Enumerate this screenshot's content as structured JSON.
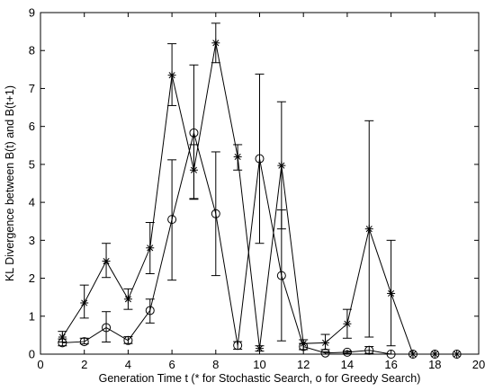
{
  "chart_data": {
    "type": "line",
    "title": "",
    "xlabel": "Generation Time t (* for Stochastic Search, o for Greedy Search)",
    "ylabel": "KL Divergence between B(t) and B(t+1)",
    "xlim": [
      0,
      20
    ],
    "ylim": [
      0,
      9
    ],
    "xticks": [
      "0",
      "2",
      "4",
      "6",
      "8",
      "10",
      "12",
      "14",
      "16",
      "18",
      "20"
    ],
    "yticks": [
      "0",
      "1",
      "2",
      "3",
      "4",
      "5",
      "6",
      "7",
      "8",
      "9"
    ],
    "grid": false,
    "legend": "none",
    "series": [
      {
        "marker": "asterisk",
        "color": "#000000",
        "x": [
          1,
          2,
          3,
          4,
          5,
          6,
          7,
          8,
          9,
          10,
          11,
          12,
          13,
          14,
          15,
          16,
          17,
          18,
          19
        ],
        "y": [
          0.45,
          1.35,
          2.45,
          1.45,
          2.8,
          7.35,
          4.85,
          8.2,
          5.2,
          0.15,
          4.97,
          0.28,
          0.3,
          0.8,
          3.3,
          1.6,
          0.0,
          0.0,
          0.0
        ],
        "err_low": [
          0.32,
          0.95,
          2.02,
          1.18,
          2.12,
          6.55,
          4.08,
          7.68,
          4.85,
          0.08,
          3.3,
          0.12,
          0.12,
          0.42,
          0.45,
          0.22,
          0.0,
          0.0,
          0.0
        ],
        "err_high": [
          0.6,
          1.82,
          2.92,
          1.72,
          3.47,
          8.18,
          5.52,
          8.72,
          5.52,
          0.22,
          6.65,
          0.38,
          0.52,
          1.18,
          6.15,
          3.0,
          0.0,
          0.0,
          0.0
        ]
      },
      {
        "marker": "circle",
        "color": "#000000",
        "x": [
          1,
          2,
          3,
          4,
          5,
          6,
          7,
          8,
          9,
          10,
          11,
          12,
          13,
          14,
          15,
          16,
          17,
          18,
          19
        ],
        "y": [
          0.3,
          0.33,
          0.7,
          0.36,
          1.15,
          3.55,
          5.83,
          3.7,
          0.23,
          5.15,
          2.07,
          0.2,
          0.03,
          0.05,
          0.1,
          0.0,
          0.0,
          0.0,
          0.0
        ],
        "err_low": [
          0.22,
          0.27,
          0.32,
          0.28,
          0.82,
          1.95,
          4.1,
          2.07,
          0.13,
          2.92,
          0.35,
          0.12,
          0.0,
          0.02,
          0.02,
          0.0,
          0.0,
          0.0,
          0.0
        ],
        "err_high": [
          0.4,
          0.42,
          1.12,
          0.46,
          1.45,
          5.12,
          7.62,
          5.33,
          0.33,
          7.38,
          3.8,
          0.28,
          0.06,
          0.08,
          0.2,
          0.0,
          0.0,
          0.0,
          0.0
        ]
      }
    ]
  }
}
